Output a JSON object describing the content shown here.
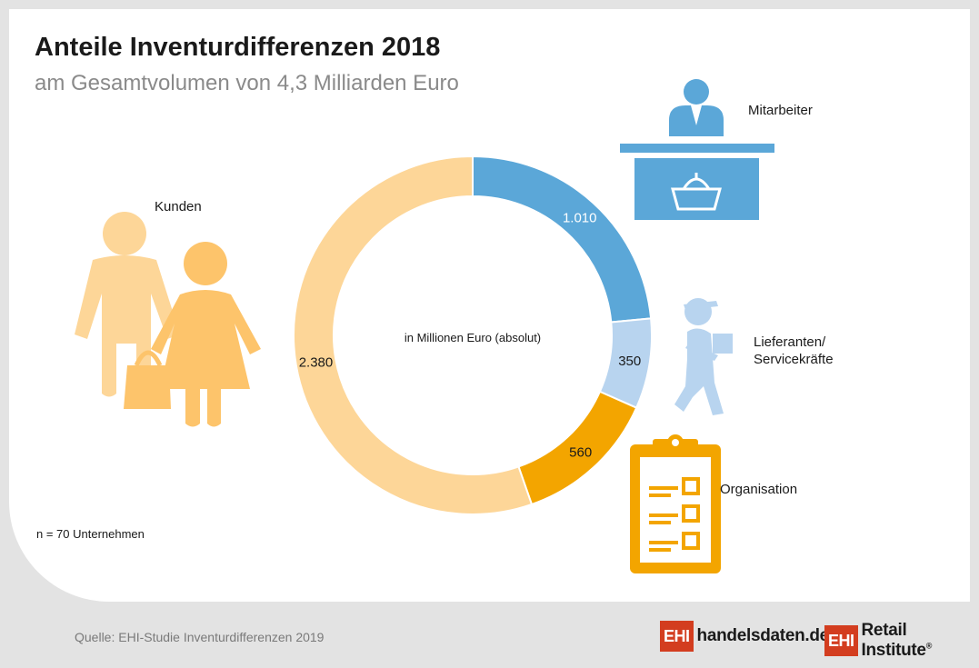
{
  "header": {
    "title": "Anteile Inventurdifferenzen 2018",
    "subtitle": "am Gesamtvolumen von 4,3 Milliarden Euro"
  },
  "chart_data": {
    "type": "pie",
    "donut": true,
    "center_label": "in Millionen Euro (absolut)",
    "slices": [
      {
        "name": "Mitarbeiter",
        "value": 1010,
        "value_label": "1.010",
        "color": "#5ba7d8"
      },
      {
        "name": "Lieferanten/ Servicekräfte",
        "value": 350,
        "value_label": "350",
        "color": "#b8d4ef"
      },
      {
        "name": "Organisation",
        "value": 560,
        "value_label": "560",
        "color": "#f3a500"
      },
      {
        "name": "Kunden",
        "value": 2380,
        "value_label": "2.380",
        "color": "#fdd698"
      }
    ]
  },
  "labels": {
    "kunden": "Kunden",
    "mitarbeiter": "Mitarbeiter",
    "lieferanten_line1": "Lieferanten/",
    "lieferanten_line2": "Servicekräfte",
    "organisation": "Organisation"
  },
  "note": "n = 70 Unternehmen",
  "footer": {
    "source": "Quelle: EHI-Studie Inventurdifferenzen 2019",
    "logo1_box": "EHI",
    "logo1_text": "handelsdaten.de",
    "logo2_box": "EHI",
    "logo2_text": "Retail Institute",
    "logo2_reg": "®"
  },
  "icons": {
    "customers": "customers-couple-icon",
    "employee": "employee-at-counter-icon",
    "supplier": "delivery-person-icon",
    "organisation": "clipboard-checklist-icon"
  }
}
